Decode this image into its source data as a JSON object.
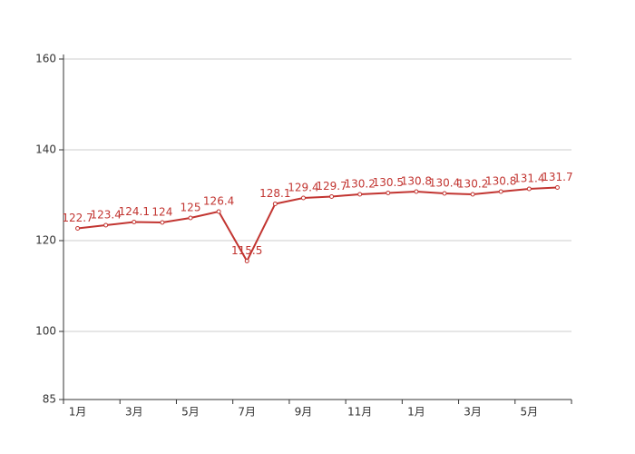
{
  "chart_data": {
    "type": "line",
    "categories": [
      "1月",
      null,
      "3月",
      null,
      "5月",
      null,
      "7月",
      null,
      "9月",
      null,
      "11月",
      null,
      "1月",
      null,
      "3月",
      null,
      "5月",
      null
    ],
    "series": [
      {
        "color": "#c23531",
        "values": [
          122.7,
          123.4,
          124.1,
          124,
          125,
          126.4,
          115.5,
          128.1,
          129.4,
          129.7,
          130.2,
          130.5,
          130.8,
          130.4,
          130.2,
          130.8,
          131.4,
          131.7
        ]
      }
    ],
    "ylim": [
      85,
      161
    ],
    "yticks": [
      85,
      100,
      120,
      140,
      160
    ],
    "grid": true
  }
}
